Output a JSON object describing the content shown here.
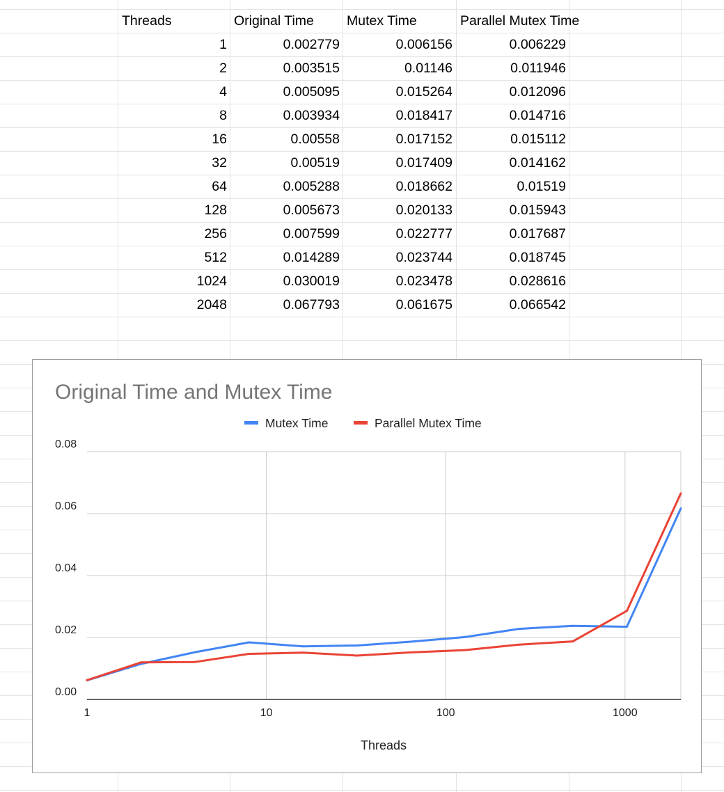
{
  "sheet": {
    "headers": [
      "Threads",
      "Original Time",
      "Mutex Time",
      "Parallel Mutex Time"
    ],
    "rows": [
      [
        "1",
        "0.002779",
        "0.006156",
        "0.006229"
      ],
      [
        "2",
        "0.003515",
        "0.01146",
        "0.011946"
      ],
      [
        "4",
        "0.005095",
        "0.015264",
        "0.012096"
      ],
      [
        "8",
        "0.003934",
        "0.018417",
        "0.014716"
      ],
      [
        "16",
        "0.00558",
        "0.017152",
        "0.015112"
      ],
      [
        "32",
        "0.00519",
        "0.017409",
        "0.014162"
      ],
      [
        "64",
        "0.005288",
        "0.018662",
        "0.01519"
      ],
      [
        "128",
        "0.005673",
        "0.020133",
        "0.015943"
      ],
      [
        "256",
        "0.007599",
        "0.022777",
        "0.017687"
      ],
      [
        "512",
        "0.014289",
        "0.023744",
        "0.018745"
      ],
      [
        "1024",
        "0.030019",
        "0.023478",
        "0.028616"
      ],
      [
        "2048",
        "0.067793",
        "0.061675",
        "0.066542"
      ]
    ]
  },
  "chart_data": {
    "type": "line",
    "title": "Original Time and Mutex Time",
    "xlabel": "Threads",
    "ylabel": "",
    "x_scale": "log",
    "xlim": [
      1,
      2048
    ],
    "ylim": [
      0,
      0.08
    ],
    "x_ticks": [
      1,
      10,
      100,
      1000
    ],
    "x_tick_labels": [
      "1",
      "10",
      "100",
      "1000"
    ],
    "y_ticks": [
      0,
      0.02,
      0.04,
      0.06,
      0.08
    ],
    "y_tick_labels": [
      "0.00",
      "0.02",
      "0.04",
      "0.06",
      "0.08"
    ],
    "grid": true,
    "legend_position": "top",
    "x": [
      1,
      2,
      4,
      8,
      16,
      32,
      64,
      128,
      256,
      512,
      1024,
      2048
    ],
    "series": [
      {
        "name": "Mutex Time",
        "color": "#4285f4",
        "values": [
          0.006156,
          0.01146,
          0.015264,
          0.018417,
          0.017152,
          0.017409,
          0.018662,
          0.020133,
          0.022777,
          0.023744,
          0.023478,
          0.061675
        ]
      },
      {
        "name": "Parallel Mutex Time",
        "color": "#ea4335",
        "values": [
          0.006229,
          0.011946,
          0.012096,
          0.014716,
          0.015112,
          0.014162,
          0.01519,
          0.015943,
          0.017687,
          0.018745,
          0.028616,
          0.066542
        ]
      }
    ]
  }
}
